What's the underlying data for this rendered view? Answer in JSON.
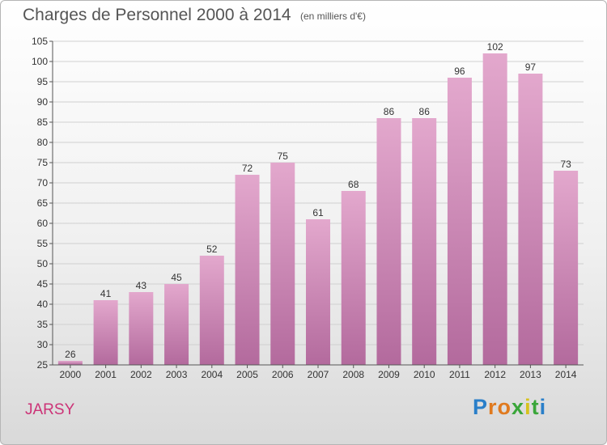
{
  "title": "Charges de Personnel 2000 à 2014",
  "subtitle": "(en milliers d'€)",
  "commune": "JARSY",
  "logo": {
    "letters": [
      "P",
      "r",
      "o",
      "x",
      "i",
      "t",
      "i"
    ],
    "colors": [
      "#2a7fc9",
      "#e07a1f",
      "#e07a1f",
      "#3aa63a",
      "#d6c21e",
      "#3aa63a",
      "#2a7fc9"
    ]
  },
  "colors": {
    "bar_top": "#e3a8cd",
    "bar_bottom": "#b36a9d",
    "grid": "#d0d0d0",
    "commune": "#cc3377"
  },
  "chart_data": {
    "type": "bar",
    "title": "Charges de Personnel 2000 à 2014",
    "subtitle": "(en milliers d'€)",
    "categories": [
      "2000",
      "2001",
      "2002",
      "2003",
      "2004",
      "2005",
      "2006",
      "2007",
      "2008",
      "2009",
      "2010",
      "2011",
      "2012",
      "2013",
      "2014"
    ],
    "values": [
      26,
      41,
      43,
      45,
      52,
      72,
      75,
      61,
      68,
      86,
      86,
      96,
      102,
      97,
      73
    ],
    "ylim": [
      25,
      105
    ],
    "yticks": [
      25,
      30,
      35,
      40,
      45,
      50,
      55,
      60,
      65,
      70,
      75,
      80,
      85,
      90,
      95,
      100,
      105
    ],
    "grid": true
  }
}
